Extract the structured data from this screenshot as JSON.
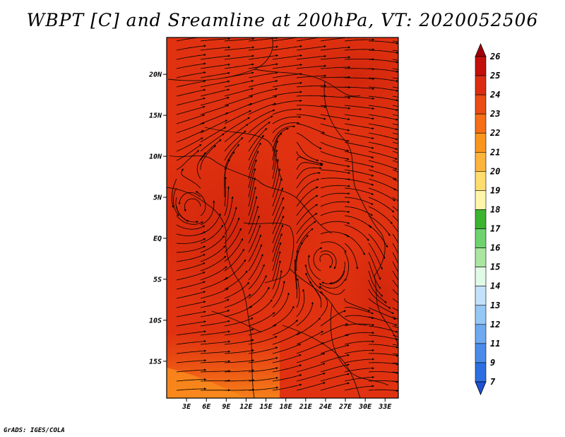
{
  "title": "WBPT [C] and Sreamline at 200hPa, VT: 2020052506",
  "credit": "GrADS: IGES/COLA",
  "map": {
    "lon_range": [
      0,
      35
    ],
    "lat_range": [
      -19.5,
      24.5
    ],
    "lat_ticks": [
      {
        "value": 20,
        "label": "20N"
      },
      {
        "value": 15,
        "label": "15N"
      },
      {
        "value": 10,
        "label": "10N"
      },
      {
        "value": 5,
        "label": "5N"
      },
      {
        "value": 0,
        "label": "EQ"
      },
      {
        "value": -5,
        "label": "5S"
      },
      {
        "value": -10,
        "label": "10S"
      },
      {
        "value": -15,
        "label": "15S"
      }
    ],
    "lon_ticks": [
      {
        "value": 3,
        "label": "3E"
      },
      {
        "value": 6,
        "label": "6E"
      },
      {
        "value": 9,
        "label": "9E"
      },
      {
        "value": 12,
        "label": "12E"
      },
      {
        "value": 15,
        "label": "15E"
      },
      {
        "value": 18,
        "label": "18E"
      },
      {
        "value": 21,
        "label": "21E"
      },
      {
        "value": 24,
        "label": "24E"
      },
      {
        "value": 27,
        "label": "27E"
      },
      {
        "value": 30,
        "label": "30E"
      },
      {
        "value": 33,
        "label": "33E"
      }
    ],
    "field_colors": {
      "dominant": "#e03210",
      "warm": "#c81e0a",
      "cool": "#f56a14",
      "coolest": "#f98a1c"
    },
    "streamline_color": "#000000",
    "vortices": [
      {
        "name": "anticyclone-north",
        "lon": 18.5,
        "lat": 12.5
      },
      {
        "name": "cyclone-west-coast",
        "lon": 4.5,
        "lat": 3.5
      },
      {
        "name": "anticyclone-east",
        "lon": 23.5,
        "lat": -2.5
      }
    ]
  },
  "colorbar": {
    "levels": [
      "26",
      "25",
      "24",
      "23",
      "22",
      "21",
      "20",
      "19",
      "18",
      "17",
      "16",
      "15",
      "14",
      "13",
      "12",
      "11",
      "9",
      "7"
    ],
    "colors": [
      "#a0000a",
      "#c3100a",
      "#dc2d12",
      "#eb4b14",
      "#f56e18",
      "#fa961e",
      "#fcb43c",
      "#fedc6e",
      "#fff5aa",
      "#3cb432",
      "#6ed26e",
      "#aae6a0",
      "#e1fae6",
      "#c3e1fa",
      "#96c8f5",
      "#6eaaf0",
      "#4b8ceb",
      "#2d6ee1",
      "#1e50d2"
    ]
  }
}
